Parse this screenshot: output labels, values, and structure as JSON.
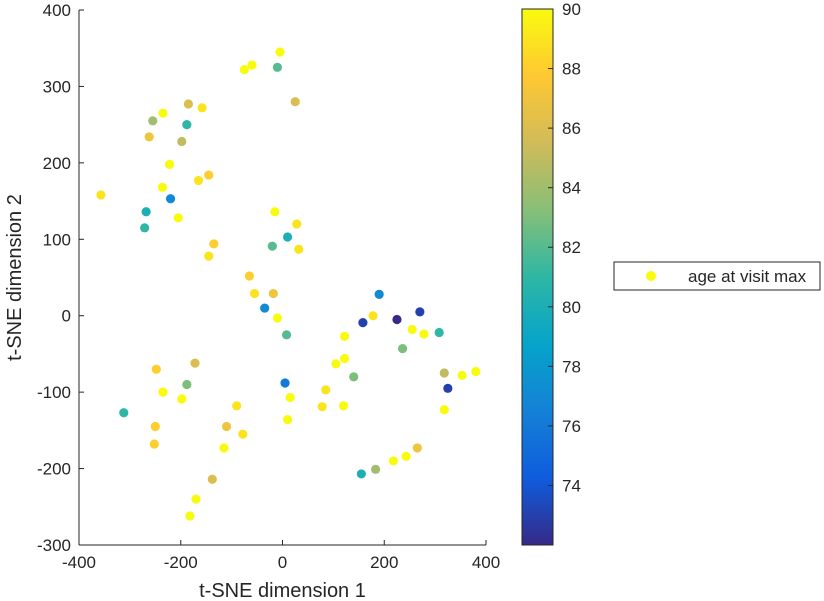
{
  "chart_data": {
    "type": "scatter",
    "xlabel": "t-SNE dimension 1",
    "ylabel": "t-SNE dimension 2",
    "xlim": [
      -400,
      400
    ],
    "ylim": [
      -300,
      400
    ],
    "xticks": [
      -400,
      -200,
      0,
      200,
      400
    ],
    "yticks": [
      -300,
      -200,
      -100,
      0,
      100,
      200,
      300,
      400
    ],
    "grid": false,
    "legend": {
      "placement": "outside-right",
      "label": "age at visit max",
      "marker_color": "#f9fb0e"
    },
    "colorbar": {
      "label": "",
      "range": [
        72,
        90
      ],
      "ticks": [
        74,
        76,
        78,
        80,
        82,
        84,
        86,
        88,
        90
      ],
      "colormap_stops": [
        "#352a87",
        "#0f5cdd",
        "#1481d6",
        "#06a4ca",
        "#2eb7a4",
        "#87bf77",
        "#d1bb59",
        "#fec832",
        "#f9fb0e"
      ]
    },
    "points": [
      {
        "x": -5,
        "y": 345,
        "c": 90
      },
      {
        "x": -60,
        "y": 328,
        "c": 90
      },
      {
        "x": -75,
        "y": 322,
        "c": 90
      },
      {
        "x": -10,
        "y": 325,
        "c": 82
      },
      {
        "x": 25,
        "y": 280,
        "c": 86
      },
      {
        "x": -235,
        "y": 265,
        "c": 90
      },
      {
        "x": -255,
        "y": 255,
        "c": 84
      },
      {
        "x": -185,
        "y": 277,
        "c": 86
      },
      {
        "x": -158,
        "y": 272,
        "c": 89
      },
      {
        "x": -188,
        "y": 250,
        "c": 81
      },
      {
        "x": -262,
        "y": 234,
        "c": 87
      },
      {
        "x": -198,
        "y": 228,
        "c": 85
      },
      {
        "x": -222,
        "y": 198,
        "c": 90
      },
      {
        "x": -145,
        "y": 184,
        "c": 88
      },
      {
        "x": -165,
        "y": 177,
        "c": 89
      },
      {
        "x": -236,
        "y": 168,
        "c": 90
      },
      {
        "x": -357,
        "y": 158,
        "c": 89
      },
      {
        "x": -220,
        "y": 153,
        "c": 77
      },
      {
        "x": -268,
        "y": 136,
        "c": 80
      },
      {
        "x": -205,
        "y": 128,
        "c": 90
      },
      {
        "x": -271,
        "y": 115,
        "c": 81
      },
      {
        "x": -15,
        "y": 136,
        "c": 90
      },
      {
        "x": 28,
        "y": 120,
        "c": 89
      },
      {
        "x": 10,
        "y": 103,
        "c": 80
      },
      {
        "x": -135,
        "y": 94,
        "c": 88
      },
      {
        "x": -20,
        "y": 91,
        "c": 82
      },
      {
        "x": 32,
        "y": 87,
        "c": 89
      },
      {
        "x": -145,
        "y": 78,
        "c": 89
      },
      {
        "x": -65,
        "y": 52,
        "c": 88
      },
      {
        "x": -55,
        "y": 29,
        "c": 89
      },
      {
        "x": -18,
        "y": 29,
        "c": 87
      },
      {
        "x": -35,
        "y": 10,
        "c": 77
      },
      {
        "x": -10,
        "y": -3,
        "c": 90
      },
      {
        "x": 8,
        "y": -25,
        "c": 82
      },
      {
        "x": 190,
        "y": 28,
        "c": 77
      },
      {
        "x": 270,
        "y": 5,
        "c": 73
      },
      {
        "x": 178,
        "y": 0,
        "c": 89
      },
      {
        "x": 225,
        "y": -5,
        "c": 72
      },
      {
        "x": 158,
        "y": -9,
        "c": 73
      },
      {
        "x": 255,
        "y": -18,
        "c": 90
      },
      {
        "x": 278,
        "y": -24,
        "c": 90
      },
      {
        "x": 308,
        "y": -22,
        "c": 81
      },
      {
        "x": 122,
        "y": -27,
        "c": 90
      },
      {
        "x": 236,
        "y": -43,
        "c": 83
      },
      {
        "x": 122,
        "y": -56,
        "c": 90
      },
      {
        "x": 105,
        "y": -63,
        "c": 90
      },
      {
        "x": 140,
        "y": -80,
        "c": 83
      },
      {
        "x": 318,
        "y": -75,
        "c": 85
      },
      {
        "x": 380,
        "y": -73,
        "c": 90
      },
      {
        "x": 353,
        "y": -78,
        "c": 90
      },
      {
        "x": 5,
        "y": -88,
        "c": 76
      },
      {
        "x": 85,
        "y": -97,
        "c": 89
      },
      {
        "x": 325,
        "y": -95,
        "c": 73
      },
      {
        "x": 15,
        "y": -107,
        "c": 90
      },
      {
        "x": 78,
        "y": -119,
        "c": 89
      },
      {
        "x": 120,
        "y": -118,
        "c": 90
      },
      {
        "x": 318,
        "y": -123,
        "c": 90
      },
      {
        "x": 10,
        "y": -136,
        "c": 90
      },
      {
        "x": -248,
        "y": -70,
        "c": 88
      },
      {
        "x": -172,
        "y": -62,
        "c": 86
      },
      {
        "x": -188,
        "y": -90,
        "c": 83
      },
      {
        "x": -235,
        "y": -100,
        "c": 90
      },
      {
        "x": -198,
        "y": -109,
        "c": 90
      },
      {
        "x": -90,
        "y": -118,
        "c": 89
      },
      {
        "x": -312,
        "y": -127,
        "c": 81
      },
      {
        "x": -110,
        "y": -145,
        "c": 87
      },
      {
        "x": -250,
        "y": -145,
        "c": 88
      },
      {
        "x": -78,
        "y": -155,
        "c": 89
      },
      {
        "x": -252,
        "y": -168,
        "c": 88
      },
      {
        "x": -115,
        "y": -173,
        "c": 90
      },
      {
        "x": 265,
        "y": -173,
        "c": 87
      },
      {
        "x": 243,
        "y": -184,
        "c": 90
      },
      {
        "x": 218,
        "y": -190,
        "c": 90
      },
      {
        "x": 183,
        "y": -201,
        "c": 84
      },
      {
        "x": 155,
        "y": -207,
        "c": 80
      },
      {
        "x": -138,
        "y": -214,
        "c": 86
      },
      {
        "x": -170,
        "y": -240,
        "c": 90
      },
      {
        "x": -182,
        "y": -262,
        "c": 90
      }
    ]
  }
}
